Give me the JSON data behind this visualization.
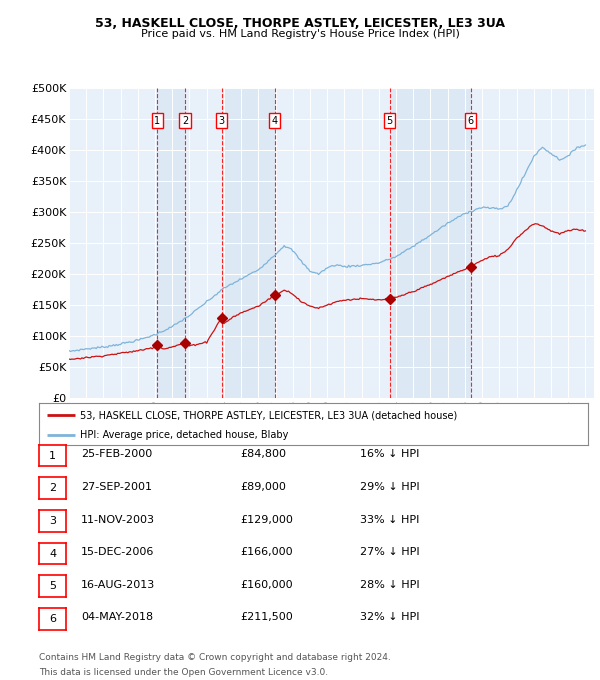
{
  "title1": "53, HASKELL CLOSE, THORPE ASTLEY, LEICESTER, LE3 3UA",
  "title2": "Price paid vs. HM Land Registry's House Price Index (HPI)",
  "legend_label_red": "53, HASKELL CLOSE, THORPE ASTLEY, LEICESTER, LE3 3UA (detached house)",
  "legend_label_blue": "HPI: Average price, detached house, Blaby",
  "footer1": "Contains HM Land Registry data © Crown copyright and database right 2024.",
  "footer2": "This data is licensed under the Open Government Licence v3.0.",
  "ylim": [
    0,
    500000
  ],
  "yticks": [
    0,
    50000,
    100000,
    150000,
    200000,
    250000,
    300000,
    350000,
    400000,
    450000,
    500000
  ],
  "ytick_labels": [
    "£0",
    "£50K",
    "£100K",
    "£150K",
    "£200K",
    "£250K",
    "£300K",
    "£350K",
    "£400K",
    "£450K",
    "£500K"
  ],
  "xmin": 1995.0,
  "xmax": 2025.5,
  "transactions": [
    {
      "num": 1,
      "date": "25-FEB-2000",
      "year": 2000.12,
      "price": 84800,
      "price_str": "£84,800",
      "pct": "16% ↓ HPI"
    },
    {
      "num": 2,
      "date": "27-SEP-2001",
      "year": 2001.74,
      "price": 89000,
      "price_str": "£89,000",
      "pct": "29% ↓ HPI"
    },
    {
      "num": 3,
      "date": "11-NOV-2003",
      "year": 2003.86,
      "price": 129000,
      "price_str": "£129,000",
      "pct": "33% ↓ HPI"
    },
    {
      "num": 4,
      "date": "15-DEC-2006",
      "year": 2006.96,
      "price": 166000,
      "price_str": "£166,000",
      "pct": "27% ↓ HPI"
    },
    {
      "num": 5,
      "date": "16-AUG-2013",
      "year": 2013.62,
      "price": 160000,
      "price_str": "£160,000",
      "pct": "28% ↓ HPI"
    },
    {
      "num": 6,
      "date": "04-MAY-2018",
      "year": 2018.34,
      "price": 211500,
      "price_str": "£211,500",
      "pct": "32% ↓ HPI"
    }
  ],
  "bg_color": "#dce9f5",
  "bg_color_alt": "#e8f1fa",
  "line_color_red": "#cc1111",
  "line_color_blue": "#7fb3d9",
  "marker_color_red": "#aa0000"
}
